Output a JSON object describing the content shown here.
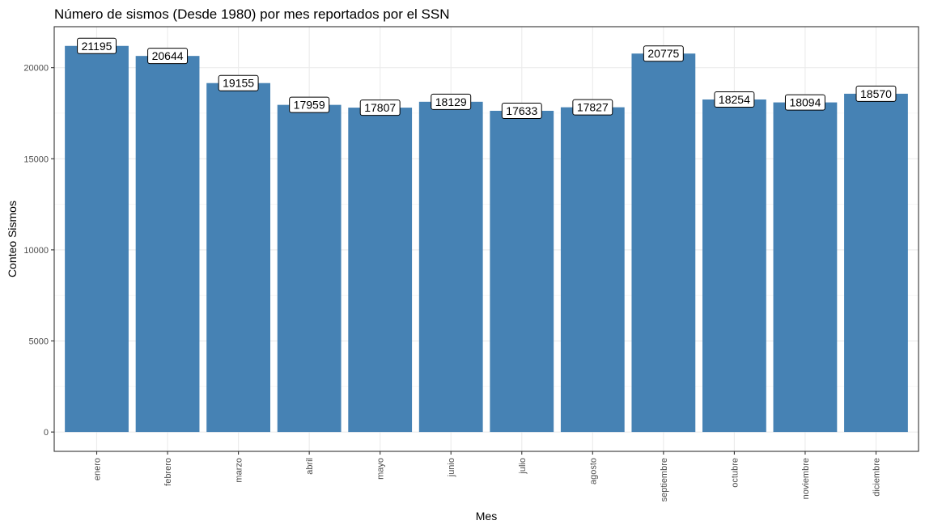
{
  "chart_data": {
    "type": "bar",
    "title": "Número de sismos (Desde 1980) por mes reportados por el SSN",
    "xlabel": "Mes",
    "ylabel": "Conteo Sismos",
    "categories": [
      "enero",
      "febrero",
      "marzo",
      "abril",
      "mayo",
      "junio",
      "julio",
      "agosto",
      "septiembre",
      "octubre",
      "noviembre",
      "diciembre"
    ],
    "values": [
      21195,
      20644,
      19155,
      17959,
      17807,
      18129,
      17633,
      17827,
      20775,
      18254,
      18094,
      18570
    ],
    "ylim": [
      -1060,
      22250
    ],
    "yticks": [
      0,
      5000,
      10000,
      15000,
      20000
    ],
    "ytick_labels": [
      "0",
      "5000",
      "10000",
      "15000",
      "20000"
    ],
    "grid": true,
    "legend": "none",
    "bar_color": "#4682B4",
    "x_tick_orientation": "vertical"
  }
}
